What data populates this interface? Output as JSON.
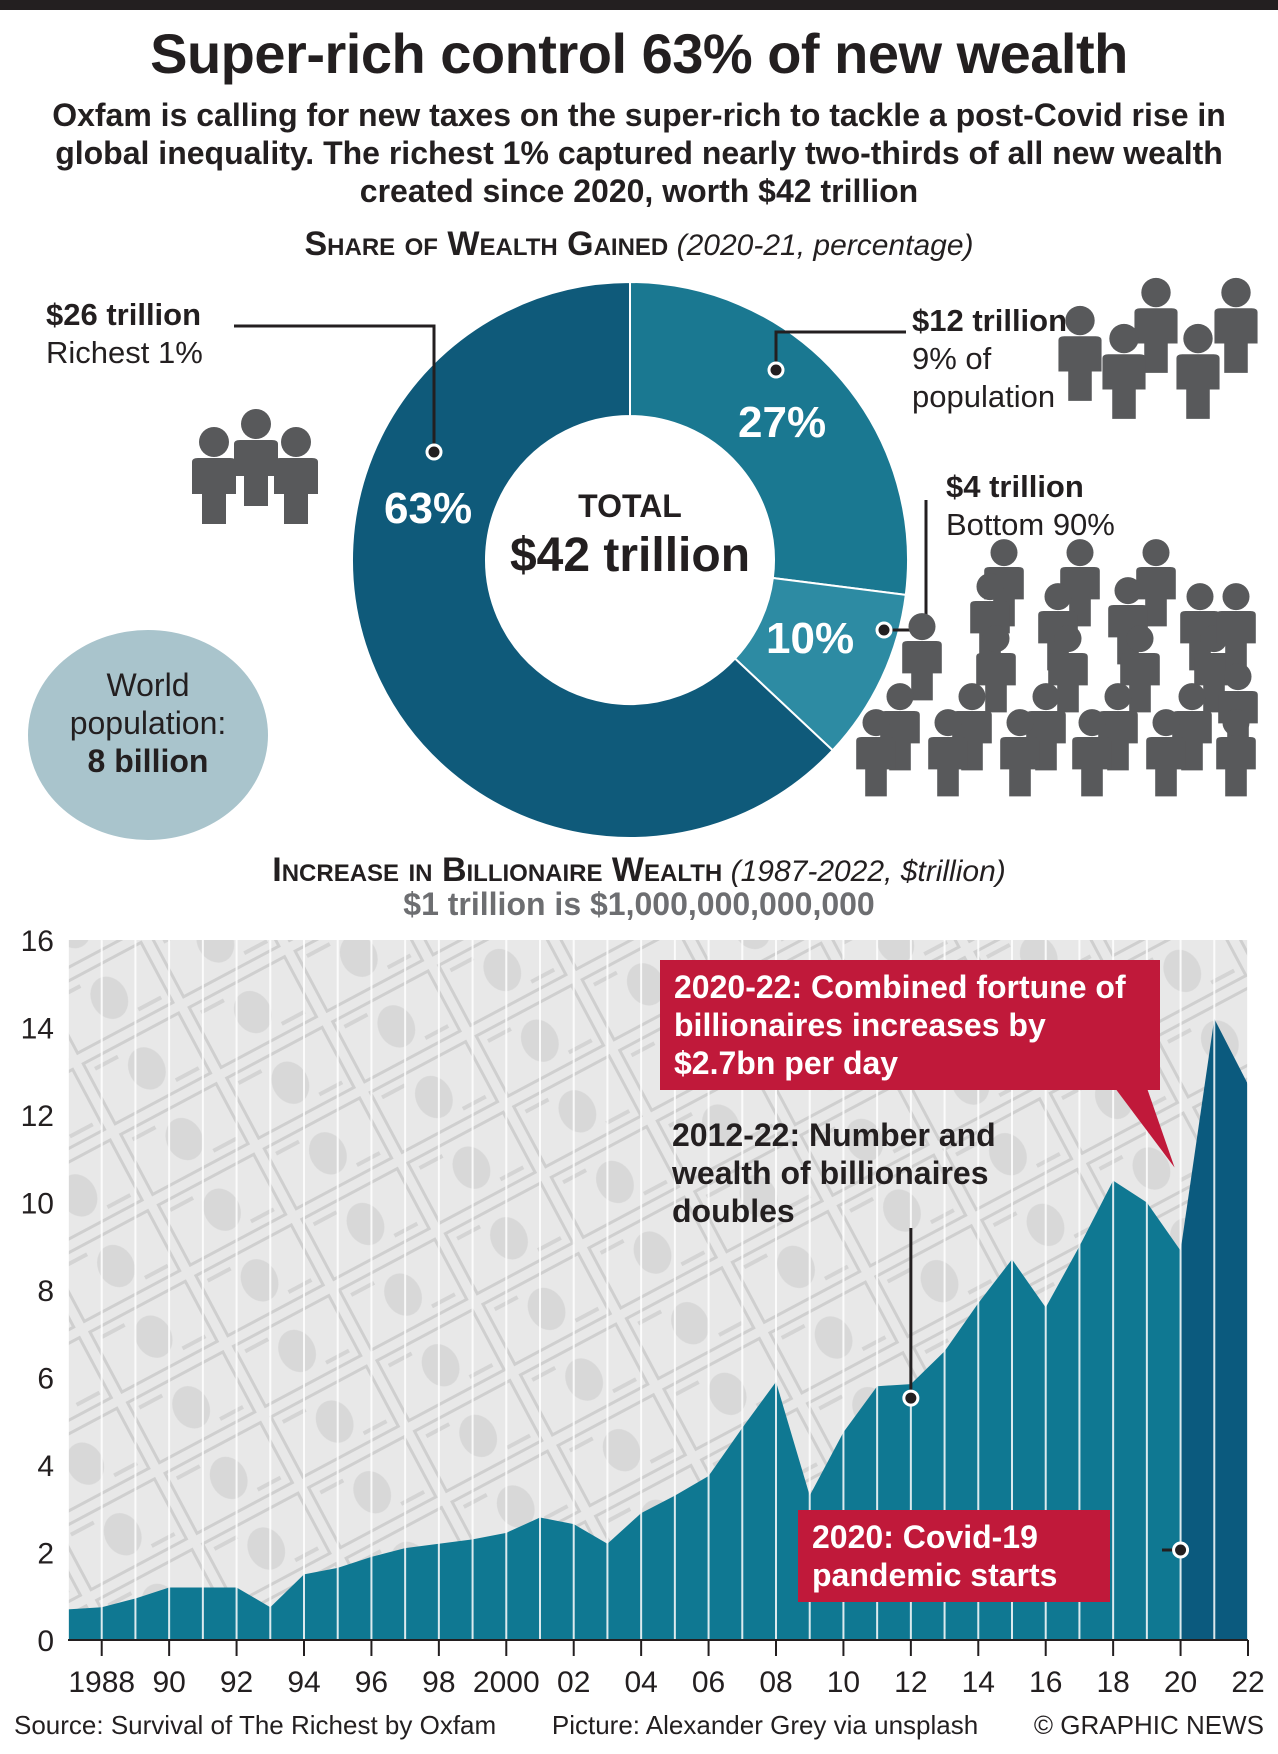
{
  "title": "Super-rich control 63% of new wealth",
  "subtitle": "Oxfam is calling for new taxes on the super-rich to tackle a post-Covid rise in global inequality. The richest 1% captured nearly two-thirds of all new wealth created since 2020, worth $42 trillion",
  "donut_section": {
    "heading": "Share of Wealth Gained",
    "qualifier": "(2020-21, percentage)"
  },
  "chart_section": {
    "heading": "Increase in Billionaire Wealth",
    "qualifier": "(1987-2022, $trillion)",
    "note": "$1 trillion is $1,000,000,000,000"
  },
  "donut": {
    "center_label": "TOTAL",
    "center_value": "$42 trillion",
    "segments": [
      {
        "pct_label": "27%",
        "amount": "$12 trillion",
        "desc": "9% of population",
        "color": "#1a7891"
      },
      {
        "pct_label": "10%",
        "amount": "$4 trillion",
        "desc": "Bottom 90%",
        "color": "#2d8ba3"
      },
      {
        "pct_label": "63%",
        "amount": "$26 trillion",
        "desc": "Richest 1%",
        "color": "#0f5a7a"
      }
    ]
  },
  "world_pop": {
    "line1": "World",
    "line2": "population:",
    "line3": "8 billion"
  },
  "chart_data": {
    "type": "area",
    "x": [
      1987,
      1988,
      1989,
      1990,
      1991,
      1992,
      1993,
      1994,
      1995,
      1996,
      1997,
      1998,
      1999,
      2000,
      2001,
      2002,
      2003,
      2004,
      2005,
      2006,
      2007,
      2008,
      2009,
      2010,
      2011,
      2012,
      2013,
      2014,
      2015,
      2016,
      2017,
      2018,
      2019,
      2020,
      2021,
      2022
    ],
    "values": [
      0.7,
      0.75,
      0.95,
      1.2,
      1.2,
      1.2,
      0.75,
      1.5,
      1.65,
      1.9,
      2.1,
      2.2,
      2.3,
      2.45,
      2.8,
      2.65,
      2.2,
      2.9,
      3.3,
      3.75,
      4.85,
      5.9,
      3.3,
      4.75,
      5.8,
      5.85,
      6.6,
      7.7,
      8.7,
      7.6,
      9.0,
      10.5,
      10.0,
      8.9,
      14.2,
      12.7
    ],
    "highlight_from": 2020,
    "ylim": [
      0,
      16
    ],
    "yticks": [
      "0",
      "2",
      "4",
      "6",
      "8",
      "10",
      "12",
      "14",
      "16"
    ],
    "xtick_labels": [
      "1988",
      "90",
      "92",
      "94",
      "96",
      "98",
      "2000",
      "02",
      "04",
      "06",
      "08",
      "10",
      "12",
      "14",
      "16",
      "18",
      "20",
      "22"
    ],
    "colors": {
      "area": "#0f7892",
      "highlight": "#0b5a7e"
    },
    "callouts": {
      "fortune": "2020-22: Combined fortune of billionaires increases by $2.7bn per day",
      "doubles": "2012-22: Number and wealth of billionaires doubles",
      "covid": "2020: Covid-19 pandemic starts"
    }
  },
  "footer": {
    "source": "Source: Survival of The Richest by Oxfam",
    "picture": "Picture: Alexander Grey via unsplash",
    "credit": "© GRAPHIC NEWS"
  }
}
